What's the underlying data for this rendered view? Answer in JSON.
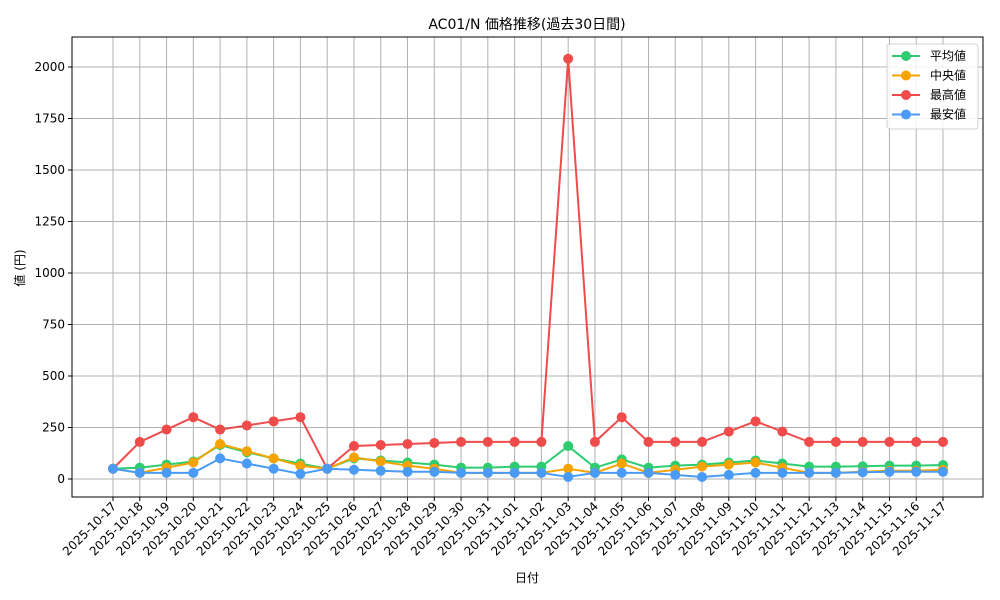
{
  "chart_data": {
    "type": "line",
    "title": "AC01/N 価格推移(過去30日間)",
    "xlabel": "日付",
    "ylabel": "値 (円)",
    "ylim": [
      -85,
      2140
    ],
    "yticks": [
      0,
      250,
      500,
      750,
      1000,
      1250,
      1500,
      1750,
      2000
    ],
    "grid": true,
    "legend_position": "upper right",
    "categories": [
      "2025-10-17",
      "2025-10-18",
      "2025-10-19",
      "2025-10-20",
      "2025-10-21",
      "2025-10-22",
      "2025-10-23",
      "2025-10-24",
      "2025-10-25",
      "2025-10-26",
      "2025-10-27",
      "2025-10-28",
      "2025-10-29",
      "2025-10-30",
      "2025-10-31",
      "2025-11-01",
      "2025-11-02",
      "2025-11-03",
      "2025-11-04",
      "2025-11-05",
      "2025-11-06",
      "2025-11-07",
      "2025-11-08",
      "2025-11-09",
      "2025-11-10",
      "2025-11-11",
      "2025-11-12",
      "2025-11-13",
      "2025-11-14",
      "2025-11-15",
      "2025-11-16",
      "2025-11-17"
    ],
    "series": [
      {
        "name": "平均値",
        "color": "#2ecc71",
        "values": [
          50,
          55,
          70,
          85,
          165,
          130,
          100,
          75,
          50,
          100,
          90,
          80,
          70,
          55,
          55,
          60,
          60,
          160,
          55,
          95,
          55,
          65,
          70,
          80,
          90,
          75,
          60,
          60,
          62,
          65,
          65,
          68
        ]
      },
      {
        "name": "中央値",
        "color": "#f5a300",
        "values": [
          50,
          30,
          55,
          80,
          170,
          135,
          100,
          65,
          50,
          105,
          85,
          65,
          50,
          30,
          30,
          30,
          30,
          50,
          30,
          75,
          30,
          45,
          60,
          70,
          80,
          55,
          30,
          30,
          35,
          40,
          40,
          45
        ]
      },
      {
        "name": "最高値",
        "color": "#ef4b4b",
        "values": [
          50,
          180,
          240,
          300,
          240,
          260,
          280,
          300,
          50,
          160,
          165,
          170,
          175,
          180,
          180,
          180,
          180,
          2040,
          180,
          300,
          180,
          180,
          180,
          230,
          280,
          230,
          180,
          180,
          180,
          180,
          180,
          180
        ]
      },
      {
        "name": "最安値",
        "color": "#4a9bf5",
        "values": [
          50,
          30,
          30,
          30,
          100,
          75,
          50,
          25,
          50,
          45,
          40,
          35,
          35,
          30,
          30,
          30,
          30,
          10,
          30,
          30,
          30,
          20,
          10,
          20,
          30,
          30,
          30,
          30,
          33,
          35,
          35,
          35
        ]
      }
    ]
  }
}
